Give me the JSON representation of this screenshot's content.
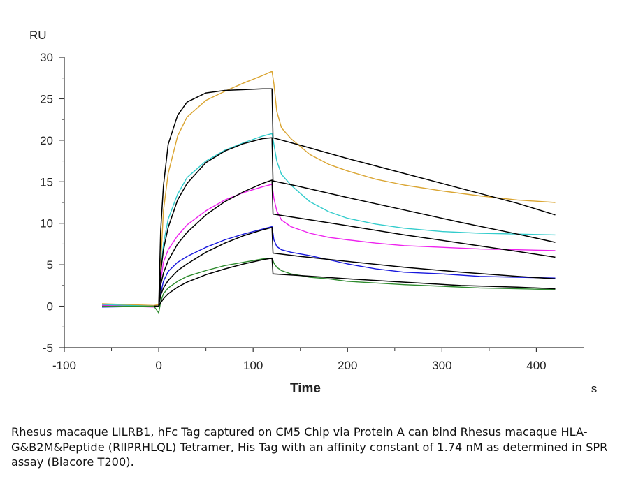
{
  "chart_data": {
    "type": "line",
    "ylabel": "RU",
    "xlabel": "Time",
    "x_unit": "s",
    "xlim": [
      -100,
      450
    ],
    "ylim": [
      -5,
      30
    ],
    "xticks": [
      -100,
      0,
      100,
      200,
      300,
      400
    ],
    "xtick_labels": [
      "-100",
      "0",
      "100",
      "200",
      "300",
      "400"
    ],
    "yticks": [
      -5,
      0,
      5,
      10,
      15,
      20,
      25,
      30
    ],
    "ytick_labels": [
      "-5",
      "0",
      "5",
      "10",
      "15",
      "20",
      "25",
      "30"
    ],
    "grid": false,
    "series": [
      {
        "color": "#DAA532",
        "x": [
          -60,
          -5,
          0,
          2,
          5,
          10,
          20,
          30,
          50,
          70,
          90,
          110,
          120,
          122,
          125,
          130,
          140,
          160,
          180,
          200,
          230,
          260,
          300,
          340,
          380,
          420
        ],
        "y": [
          0.3,
          0.1,
          0.2,
          5,
          11.5,
          16,
          20.5,
          22.8,
          24.8,
          25.9,
          26.9,
          27.8,
          28.3,
          26.8,
          23.5,
          21.5,
          20.2,
          18.3,
          17.1,
          16.3,
          15.3,
          14.6,
          13.9,
          13.3,
          12.8,
          12.5
        ]
      },
      {
        "color": "#33CCCC",
        "x": [
          -60,
          -5,
          0,
          2,
          5,
          10,
          20,
          30,
          50,
          70,
          90,
          110,
          120,
          122,
          125,
          130,
          140,
          160,
          180,
          200,
          230,
          260,
          300,
          340,
          380,
          420
        ],
        "y": [
          0.2,
          0.0,
          0.0,
          4,
          7.5,
          10.5,
          13.5,
          15.5,
          17.5,
          18.8,
          19.7,
          20.5,
          20.8,
          19.5,
          17.5,
          15.9,
          14.6,
          12.6,
          11.4,
          10.6,
          9.9,
          9.4,
          9.0,
          8.8,
          8.7,
          8.6
        ]
      },
      {
        "color": "#EE22EE",
        "x": [
          -60,
          -5,
          0,
          2,
          5,
          10,
          20,
          30,
          50,
          70,
          90,
          110,
          120,
          122,
          125,
          130,
          140,
          160,
          180,
          200,
          230,
          260,
          300,
          340,
          380,
          420
        ],
        "y": [
          0.1,
          -0.1,
          0.0,
          3,
          5.3,
          6.8,
          8.5,
          9.8,
          11.5,
          12.8,
          13.7,
          14.4,
          14.7,
          13.0,
          11.5,
          10.4,
          9.6,
          8.8,
          8.3,
          8.0,
          7.6,
          7.3,
          7.1,
          6.9,
          6.8,
          6.7
        ]
      },
      {
        "color": "#1818DD",
        "x": [
          -60,
          -5,
          0,
          2,
          5,
          10,
          20,
          30,
          50,
          70,
          90,
          110,
          120,
          122,
          125,
          130,
          140,
          160,
          180,
          200,
          230,
          260,
          300,
          340,
          380,
          420
        ],
        "y": [
          -0.1,
          0.0,
          0.0,
          1.5,
          3.0,
          4.2,
          5.3,
          6.0,
          7.1,
          8.0,
          8.7,
          9.3,
          9.6,
          8.0,
          7.2,
          6.8,
          6.5,
          6.1,
          5.6,
          5.1,
          4.5,
          4.1,
          3.9,
          3.6,
          3.5,
          3.4
        ]
      },
      {
        "color": "#2E8B2E",
        "x": [
          -60,
          -5,
          0,
          2,
          5,
          10,
          20,
          30,
          50,
          70,
          90,
          110,
          120,
          122,
          125,
          130,
          140,
          160,
          180,
          200,
          230,
          260,
          300,
          340,
          380,
          420
        ],
        "y": [
          0.0,
          0.0,
          -0.8,
          0.5,
          1.5,
          2.2,
          3.0,
          3.6,
          4.3,
          4.9,
          5.3,
          5.7,
          5.8,
          5.2,
          4.7,
          4.3,
          3.9,
          3.5,
          3.3,
          3.0,
          2.8,
          2.6,
          2.4,
          2.2,
          2.1,
          2.0
        ]
      },
      {
        "color": "#000000",
        "x": [
          -5,
          0,
          2,
          5,
          10,
          20,
          30,
          50,
          70,
          90,
          110,
          120,
          121,
          150,
          200,
          260,
          320,
          380,
          420
        ],
        "y": [
          0.0,
          0.0,
          9,
          14.5,
          19.5,
          23.0,
          24.6,
          25.7,
          26.0,
          26.1,
          26.2,
          26.2,
          20.3,
          19.4,
          17.8,
          16.0,
          14.2,
          12.4,
          11.0
        ]
      },
      {
        "color": "#000000",
        "x": [
          -5,
          0,
          2,
          5,
          10,
          20,
          30,
          50,
          70,
          90,
          110,
          120,
          121,
          150,
          200,
          260,
          320,
          380,
          420
        ],
        "y": [
          0.0,
          0.0,
          4,
          6.8,
          9.5,
          12.8,
          14.8,
          17.3,
          18.7,
          19.6,
          20.2,
          20.3,
          15.1,
          14.4,
          13.1,
          11.6,
          10.1,
          8.7,
          7.7
        ]
      },
      {
        "color": "#000000",
        "x": [
          -5,
          0,
          2,
          5,
          10,
          20,
          30,
          50,
          70,
          90,
          110,
          120,
          121,
          150,
          200,
          260,
          320,
          380,
          420
        ],
        "y": [
          0.0,
          0.0,
          2.5,
          4.0,
          5.5,
          7.5,
          8.9,
          11.0,
          12.6,
          13.8,
          14.8,
          15.2,
          11.1,
          10.6,
          9.7,
          8.6,
          7.6,
          6.6,
          5.9
        ]
      },
      {
        "color": "#000000",
        "x": [
          -5,
          0,
          2,
          5,
          10,
          20,
          30,
          50,
          70,
          90,
          110,
          120,
          121,
          150,
          200,
          260,
          320,
          380,
          420
        ],
        "y": [
          0.0,
          0.0,
          1.3,
          2.2,
          3.1,
          4.3,
          5.1,
          6.5,
          7.6,
          8.5,
          9.2,
          9.5,
          6.4,
          6.0,
          5.4,
          4.7,
          4.1,
          3.6,
          3.3
        ]
      },
      {
        "color": "#000000",
        "x": [
          -5,
          0,
          2,
          5,
          10,
          20,
          30,
          50,
          70,
          90,
          110,
          120,
          121,
          150,
          200,
          260,
          320,
          380,
          420
        ],
        "y": [
          0.0,
          0.0,
          0.4,
          0.9,
          1.5,
          2.3,
          2.9,
          3.8,
          4.5,
          5.1,
          5.6,
          5.8,
          3.9,
          3.7,
          3.3,
          2.9,
          2.5,
          2.3,
          2.1
        ]
      }
    ]
  },
  "caption": "Rhesus macaque LILRB1, hFc Tag captured on CM5 Chip via Protein A can bind Rhesus macaque HLA-G&B2M&Peptide (RIIPRHLQL) Tetramer, His Tag with an affinity constant of 1.74 nM as determined in SPR assay (Biacore T200)."
}
